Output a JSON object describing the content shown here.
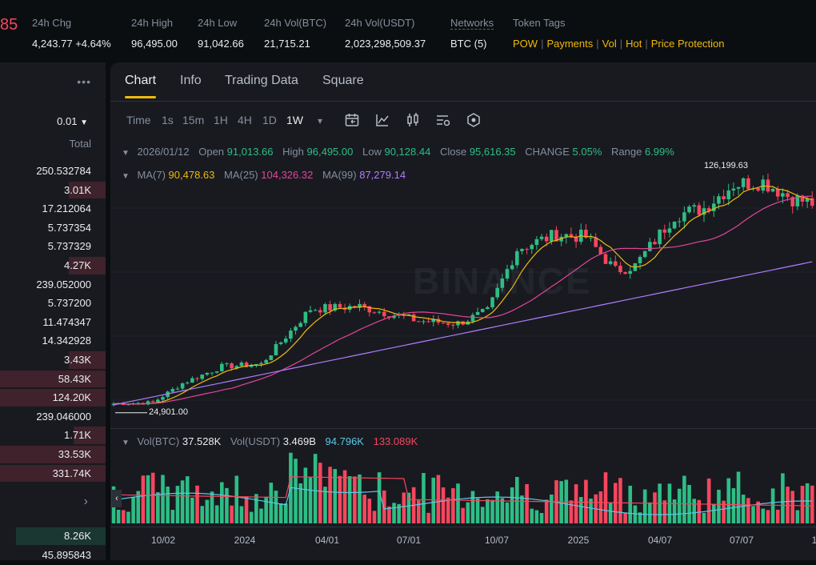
{
  "header": {
    "price_fragment": "85",
    "stats": [
      {
        "label": "24h Chg",
        "value": "4,243.77 +4.64%"
      },
      {
        "label": "24h High",
        "value": "96,495.00"
      },
      {
        "label": "24h Low",
        "value": "91,042.66"
      },
      {
        "label": "24h Vol(BTC)",
        "value": "21,715.21"
      },
      {
        "label": "24h Vol(USDT)",
        "value": "2,023,298,509.37"
      },
      {
        "label": "Networks",
        "value": "BTC (5)"
      },
      {
        "label": "Token Tags",
        "value": ""
      }
    ],
    "token_tags": [
      "POW",
      "Payments",
      "Vol",
      "Hot",
      "Price Protection"
    ]
  },
  "orderbook": {
    "menu": "•••",
    "precision": "0.01",
    "total_header": "Total",
    "ask_rows": [
      {
        "total": "250.532784",
        "depth": 0
      },
      {
        "total": "3.01K",
        "depth": 0.35
      },
      {
        "total": "17.212064",
        "depth": 0
      },
      {
        "total": "5.737354",
        "depth": 0
      },
      {
        "total": "5.737329",
        "depth": 0
      },
      {
        "total": "4.27K",
        "depth": 0.35
      },
      {
        "total": "239.052000",
        "depth": 0
      },
      {
        "total": "5.737200",
        "depth": 0
      },
      {
        "total": "11.474347",
        "depth": 0
      },
      {
        "total": "14.342928",
        "depth": 0
      },
      {
        "total": "3.43K",
        "depth": 0.35
      },
      {
        "total": "58.43K",
        "depth": 1.0
      },
      {
        "total": "124.20K",
        "depth": 1.0
      },
      {
        "total": "239.046000",
        "depth": 0
      },
      {
        "total": "1.71K",
        "depth": 0.3
      },
      {
        "total": "33.53K",
        "depth": 1.0
      },
      {
        "total": "331.74K",
        "depth": 1.0
      }
    ],
    "arrow": "›",
    "bid_rows": [
      {
        "total": "8.26K",
        "depth": 0.85
      },
      {
        "total": "45.895843",
        "depth": 0
      }
    ]
  },
  "tabs": [
    "Chart",
    "Info",
    "Trading Data",
    "Square"
  ],
  "active_tab": "Chart",
  "toolbar": {
    "intervals": [
      "Time",
      "1s",
      "15m",
      "1H",
      "4H",
      "1D",
      "1W"
    ],
    "active_interval": "1W",
    "dropdown": "▾",
    "icons": [
      "calendar-icon",
      "indicator-icon",
      "candle-type-icon",
      "chart-settings-icon",
      "depth-icon"
    ]
  },
  "legend": {
    "date": "2026/01/12",
    "open_label": "Open",
    "open": "91,013.66",
    "high_label": "High",
    "high": "96,495.00",
    "low_label": "Low",
    "low": "90,128.44",
    "close_label": "Close",
    "close": "95,616.35",
    "change_label": "CHANGE",
    "change": "5.05%",
    "range_label": "Range",
    "range": "6.99%",
    "ma7_label": "MA(7)",
    "ma7": "90,478.63",
    "ma25_label": "MA(25)",
    "ma25": "104,326.32",
    "ma99_label": "MA(99)",
    "ma99": "87,279.14",
    "vol_btc_label": "Vol(BTC)",
    "vol_btc": "37.528K",
    "vol_usdt_label": "Vol(USDT)",
    "vol_usdt": "3.469B",
    "vol_ma1": "94.796K",
    "vol_ma2": "133.089K"
  },
  "watermark": "BINANCE",
  "chart_data": {
    "type": "candlestick",
    "interval": "1W",
    "max_label": "126,199.63",
    "min_label": "24,901.00",
    "x_ticks": [
      "10/02",
      "2024",
      "04/01",
      "07/01",
      "10/07",
      "2025",
      "04/07",
      "07/07",
      "1"
    ],
    "price_range": [
      20000,
      132000
    ],
    "key_points": [
      {
        "t": 0,
        "close": 26500
      },
      {
        "t": 8,
        "close": 27000
      },
      {
        "t": 14,
        "close": 35000
      },
      {
        "t": 22,
        "close": 42000
      },
      {
        "t": 30,
        "close": 43000
      },
      {
        "t": 40,
        "close": 66000
      },
      {
        "t": 50,
        "close": 67000
      },
      {
        "t": 62,
        "close": 61000
      },
      {
        "t": 70,
        "close": 60000
      },
      {
        "t": 76,
        "close": 65000
      },
      {
        "t": 82,
        "close": 91000
      },
      {
        "t": 90,
        "close": 97000
      },
      {
        "t": 96,
        "close": 96000
      },
      {
        "t": 102,
        "close": 82000
      },
      {
        "t": 106,
        "close": 84000
      },
      {
        "t": 114,
        "close": 105000
      },
      {
        "t": 120,
        "close": 108000
      },
      {
        "t": 126,
        "close": 118000
      },
      {
        "t": 132,
        "close": 119000
      },
      {
        "t": 138,
        "close": 112000
      },
      {
        "t": 142,
        "close": 110000
      }
    ],
    "volume_range": [
      0,
      160000
    ],
    "volume_ma_values": {
      "ma1": 94796,
      "ma2": 133089
    },
    "colors": {
      "up": "#2ebd85",
      "down": "#f6465d",
      "ma7": "#f0b90b",
      "ma25": "#e3459a",
      "ma99": "#b27cff",
      "vol_ma1": "#5cc8e6",
      "vol_ma2": "#f6465d"
    }
  }
}
